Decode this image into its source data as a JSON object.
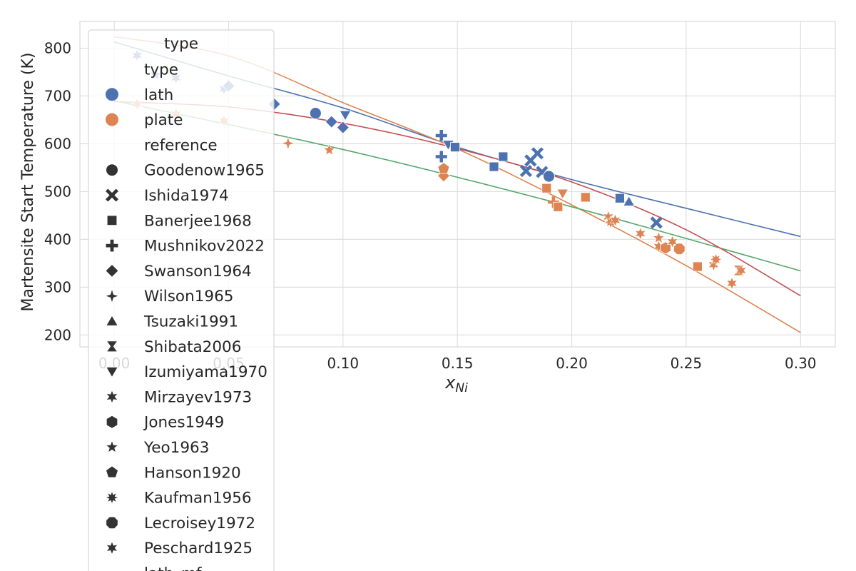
{
  "chart_data": {
    "type": "scatter",
    "xlabel": "x",
    "xlabel_sub": "Ni",
    "ylabel": "Martensite Start Temperature (K)",
    "xlim": [
      -0.015,
      0.3152
    ],
    "ylim": [
      175,
      856
    ],
    "xticks": [
      0.0,
      0.05,
      0.1,
      0.15,
      0.2,
      0.25,
      0.3
    ],
    "xtick_labels": [
      "0.00",
      "0.05",
      "0.10",
      "0.15",
      "0.20",
      "0.25",
      "0.30"
    ],
    "yticks": [
      200,
      300,
      400,
      500,
      600,
      700,
      800
    ],
    "ytick_labels": [
      "200",
      "300",
      "400",
      "500",
      "600",
      "700",
      "800"
    ],
    "grid": true,
    "legend_position": "upper-left",
    "colors": {
      "lath": "#4c72b0",
      "plate": "#dd8452",
      "green": "#55a868",
      "red": "#c44e52"
    },
    "legend": {
      "title": "type",
      "entries": [
        {
          "label": "type",
          "kind": "header"
        },
        {
          "label": "lath",
          "kind": "color",
          "color": "#4c72b0"
        },
        {
          "label": "plate",
          "kind": "color",
          "color": "#dd8452"
        },
        {
          "label": "reference",
          "kind": "header"
        },
        {
          "label": "Goodenow1965",
          "kind": "marker",
          "marker": "circle"
        },
        {
          "label": "Ishida1974",
          "kind": "marker",
          "marker": "x"
        },
        {
          "label": "Banerjee1968",
          "kind": "marker",
          "marker": "square"
        },
        {
          "label": "Mushnikov2022",
          "kind": "marker",
          "marker": "plus"
        },
        {
          "label": "Swanson1964",
          "kind": "marker",
          "marker": "diamond"
        },
        {
          "label": "Wilson1965",
          "kind": "marker",
          "marker": "star4"
        },
        {
          "label": "Tsuzaki1991",
          "kind": "marker",
          "marker": "triangle"
        },
        {
          "label": "Shibata2006",
          "kind": "marker",
          "marker": "bowtie"
        },
        {
          "label": "Izumiyama1970",
          "kind": "marker",
          "marker": "tridown"
        },
        {
          "label": "Mirzayev1973",
          "kind": "marker",
          "marker": "star6"
        },
        {
          "label": "Jones1949",
          "kind": "marker",
          "marker": "hexagon"
        },
        {
          "label": "Yeo1963",
          "kind": "marker",
          "marker": "star5"
        },
        {
          "label": "Hanson1920",
          "kind": "marker",
          "marker": "pentagon"
        },
        {
          "label": "Kaufman1956",
          "kind": "marker",
          "marker": "star8"
        },
        {
          "label": "Lecroisey1972",
          "kind": "marker",
          "marker": "octagon"
        },
        {
          "label": "Peschard1925",
          "kind": "marker",
          "marker": "star6"
        },
        {
          "label": "lath_mf",
          "kind": "line"
        }
      ]
    },
    "fit_lines": [
      {
        "name": "lath",
        "color": "#4c72b0",
        "x": [
          0.0,
          0.05,
          0.1,
          0.15,
          0.2,
          0.25,
          0.3
        ],
        "y": [
          813,
          742,
          675,
          593,
          525,
          465,
          406
        ]
      },
      {
        "name": "plate",
        "color": "#dd8452",
        "x": [
          0.0,
          0.05,
          0.1,
          0.15,
          0.2,
          0.25,
          0.3
        ],
        "y": [
          824,
          784,
          686,
          589,
          472,
          345,
          205
        ]
      },
      {
        "name": "",
        "color": "#55a868",
        "x": [
          0.0,
          0.1,
          0.2,
          0.3
        ],
        "y": [
          690,
          588,
          468,
          334
        ]
      },
      {
        "name": "",
        "color": "#c44e52",
        "x": [
          0.0,
          0.05,
          0.1,
          0.15,
          0.2,
          0.25,
          0.3
        ],
        "y": [
          688,
          677,
          643,
          590,
          520,
          420,
          282
        ]
      }
    ],
    "points": [
      {
        "x": 0.01,
        "y": 785,
        "type": "lath",
        "marker": "star6"
      },
      {
        "x": 0.018,
        "y": 744,
        "type": "lath",
        "marker": "star5"
      },
      {
        "x": 0.027,
        "y": 738,
        "type": "lath",
        "marker": "star6"
      },
      {
        "x": 0.048,
        "y": 715,
        "type": "lath",
        "marker": "star6"
      },
      {
        "x": 0.05,
        "y": 721,
        "type": "lath",
        "marker": "diamond"
      },
      {
        "x": 0.07,
        "y": 683,
        "type": "lath",
        "marker": "diamond"
      },
      {
        "x": 0.088,
        "y": 664,
        "type": "lath",
        "marker": "circle"
      },
      {
        "x": 0.095,
        "y": 646,
        "type": "lath",
        "marker": "diamond"
      },
      {
        "x": 0.1,
        "y": 634,
        "type": "lath",
        "marker": "diamond"
      },
      {
        "x": 0.101,
        "y": 660,
        "type": "lath",
        "marker": "tridown"
      },
      {
        "x": 0.143,
        "y": 617,
        "type": "lath",
        "marker": "plus"
      },
      {
        "x": 0.143,
        "y": 573,
        "type": "lath",
        "marker": "plus"
      },
      {
        "x": 0.146,
        "y": 598,
        "type": "lath",
        "marker": "tridown"
      },
      {
        "x": 0.149,
        "y": 593,
        "type": "lath",
        "marker": "square"
      },
      {
        "x": 0.166,
        "y": 552,
        "type": "lath",
        "marker": "square"
      },
      {
        "x": 0.17,
        "y": 573,
        "type": "lath",
        "marker": "square"
      },
      {
        "x": 0.18,
        "y": 543,
        "type": "lath",
        "marker": "x"
      },
      {
        "x": 0.182,
        "y": 565,
        "type": "lath",
        "marker": "x"
      },
      {
        "x": 0.185,
        "y": 580,
        "type": "lath",
        "marker": "x"
      },
      {
        "x": 0.187,
        "y": 541,
        "type": "lath",
        "marker": "x"
      },
      {
        "x": 0.19,
        "y": 532,
        "type": "lath",
        "marker": "circle"
      },
      {
        "x": 0.221,
        "y": 486,
        "type": "lath",
        "marker": "square"
      },
      {
        "x": 0.225,
        "y": 479,
        "type": "lath",
        "marker": "triangle"
      },
      {
        "x": 0.237,
        "y": 435,
        "type": "lath",
        "marker": "x"
      },
      {
        "x": 0.01,
        "y": 683,
        "type": "plate",
        "marker": "star6"
      },
      {
        "x": 0.027,
        "y": 662,
        "type": "plate",
        "marker": "star6"
      },
      {
        "x": 0.048,
        "y": 648,
        "type": "plate",
        "marker": "star6"
      },
      {
        "x": 0.076,
        "y": 601,
        "type": "plate",
        "marker": "star4"
      },
      {
        "x": 0.094,
        "y": 587,
        "type": "plate",
        "marker": "star5"
      },
      {
        "x": 0.144,
        "y": 533,
        "type": "plate",
        "marker": "diamond"
      },
      {
        "x": 0.144,
        "y": 548,
        "type": "plate",
        "marker": "pentagon"
      },
      {
        "x": 0.189,
        "y": 507,
        "type": "plate",
        "marker": "square"
      },
      {
        "x": 0.192,
        "y": 478,
        "type": "plate",
        "marker": "plus"
      },
      {
        "x": 0.194,
        "y": 468,
        "type": "plate",
        "marker": "square"
      },
      {
        "x": 0.196,
        "y": 496,
        "type": "plate",
        "marker": "tridown"
      },
      {
        "x": 0.206,
        "y": 488,
        "type": "plate",
        "marker": "square"
      },
      {
        "x": 0.216,
        "y": 447,
        "type": "plate",
        "marker": "star6"
      },
      {
        "x": 0.217,
        "y": 436,
        "type": "plate",
        "marker": "star8"
      },
      {
        "x": 0.219,
        "y": 440,
        "type": "plate",
        "marker": "star6"
      },
      {
        "x": 0.23,
        "y": 412,
        "type": "plate",
        "marker": "star6"
      },
      {
        "x": 0.238,
        "y": 403,
        "type": "plate",
        "marker": "star5"
      },
      {
        "x": 0.238,
        "y": 385,
        "type": "plate",
        "marker": "star6"
      },
      {
        "x": 0.241,
        "y": 382,
        "type": "plate",
        "marker": "hexagon"
      },
      {
        "x": 0.244,
        "y": 395,
        "type": "plate",
        "marker": "star6"
      },
      {
        "x": 0.247,
        "y": 380,
        "type": "plate",
        "marker": "octagon"
      },
      {
        "x": 0.255,
        "y": 343,
        "type": "plate",
        "marker": "square"
      },
      {
        "x": 0.262,
        "y": 347,
        "type": "plate",
        "marker": "star6"
      },
      {
        "x": 0.263,
        "y": 358,
        "type": "plate",
        "marker": "star8"
      },
      {
        "x": 0.27,
        "y": 308,
        "type": "plate",
        "marker": "star6"
      },
      {
        "x": 0.273,
        "y": 335,
        "type": "plate",
        "marker": "bowtie"
      },
      {
        "x": 0.274,
        "y": 335,
        "type": "plate",
        "marker": "star6"
      }
    ]
  }
}
